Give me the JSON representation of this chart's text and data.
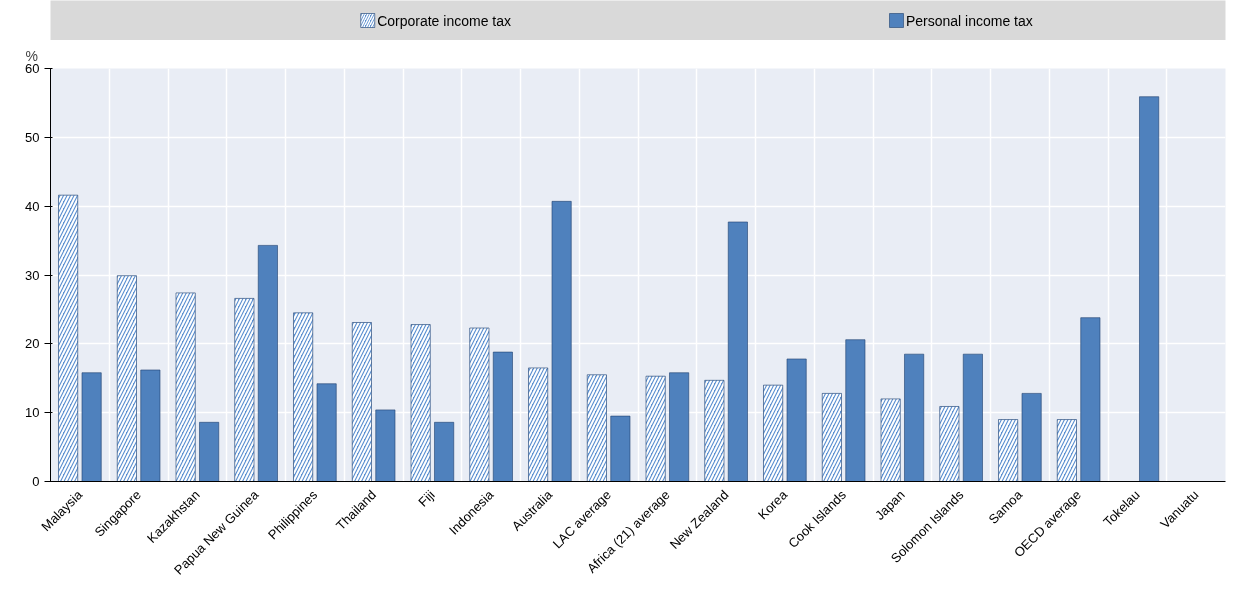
{
  "chart_data": {
    "type": "bar",
    "ylabel": "%",
    "categories": [
      "Malaysia",
      "Singapore",
      "Kazakhstan",
      "Papua New Guinea",
      "Philippines",
      "Thailand",
      "Fiji",
      "Indonesia",
      "Australia",
      "LAC average",
      "Africa (21) average",
      "New Zealand",
      "Korea",
      "Cook Islands",
      "Japan",
      "Solomon Islands",
      "Samoa",
      "OECD average",
      "Tokelau",
      "Vanuatu"
    ],
    "series": [
      {
        "name": "Corporate income tax",
        "color": "#5b8fd0",
        "values": [
          41.6,
          29.9,
          27.4,
          26.6,
          24.5,
          23.1,
          22.8,
          22.3,
          16.5,
          15.5,
          15.3,
          14.7,
          14.0,
          12.8,
          12.0,
          10.9,
          9.0,
          9.0,
          null,
          null
        ]
      },
      {
        "name": "Personal income tax",
        "color": "#4f81bd",
        "values": [
          15.8,
          16.2,
          8.6,
          34.3,
          14.2,
          10.4,
          8.6,
          18.8,
          40.7,
          9.5,
          15.8,
          37.7,
          17.8,
          20.6,
          18.5,
          18.5,
          12.8,
          23.8,
          55.9,
          null
        ]
      }
    ],
    "ylim": [
      0,
      60
    ],
    "yticks": [
      0,
      10,
      20,
      30,
      40,
      50,
      60
    ],
    "grid": true,
    "legend": "top"
  }
}
